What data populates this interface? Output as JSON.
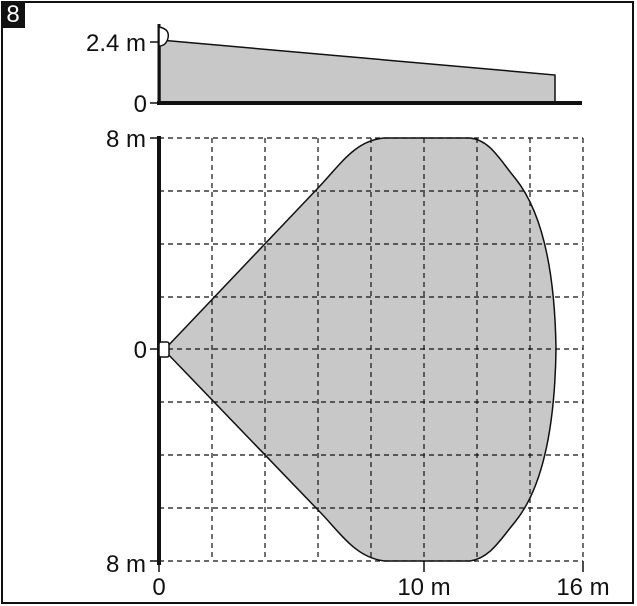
{
  "figure": {
    "number": "8"
  },
  "side_view": {
    "height_label": "2.4 m",
    "ground_label": "0",
    "range_pattern": "side-view detection beam sloping downward from 2.4 m"
  },
  "top_view": {
    "y_top_label": "8 m",
    "y_center_label": "0",
    "y_bottom_label": "8 m",
    "x_start_label": "0",
    "x_mid_label": "10 m",
    "x_end_label": "16 m"
  },
  "colors": {
    "coverage_fill": "#c8c8c8",
    "line": "#111111",
    "grid": "#111111",
    "background": "#ffffff"
  },
  "icons": {
    "sensor": "detector-icon"
  }
}
